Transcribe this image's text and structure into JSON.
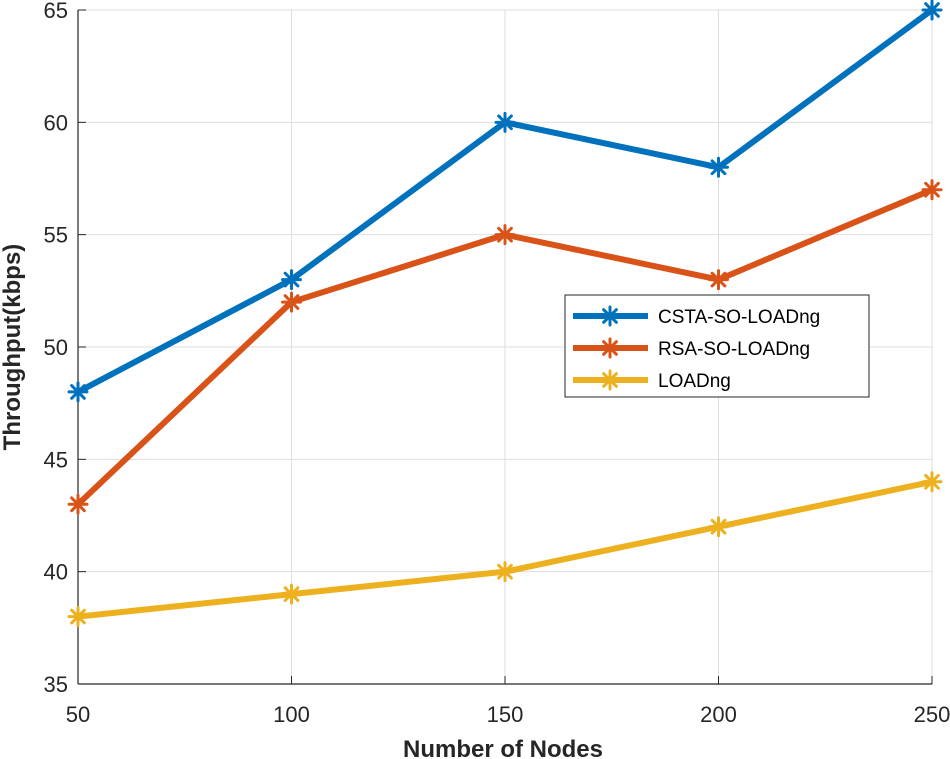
{
  "chart_data": {
    "type": "line",
    "title": "",
    "xlabel": "Number of Nodes",
    "ylabel": "Throughput(kbps)",
    "x": [
      50,
      100,
      150,
      200,
      250
    ],
    "xlim": [
      50,
      250
    ],
    "ylim": [
      35,
      65
    ],
    "xticks": [
      50,
      100,
      150,
      200,
      250
    ],
    "yticks": [
      35,
      40,
      45,
      50,
      55,
      60,
      65
    ],
    "grid": true,
    "legend_position": "right-middle",
    "marker": "asterisk",
    "series": [
      {
        "name": "CSTA-SO-LOADng",
        "color": "#0072BD",
        "values": [
          48,
          53,
          60,
          58,
          65
        ]
      },
      {
        "name": "RSA-SO-LOADng",
        "color": "#D95319",
        "values": [
          43,
          52,
          55,
          53,
          57
        ]
      },
      {
        "name": "LOADng",
        "color": "#EDB120",
        "values": [
          38,
          39,
          40,
          42,
          44
        ]
      }
    ]
  }
}
